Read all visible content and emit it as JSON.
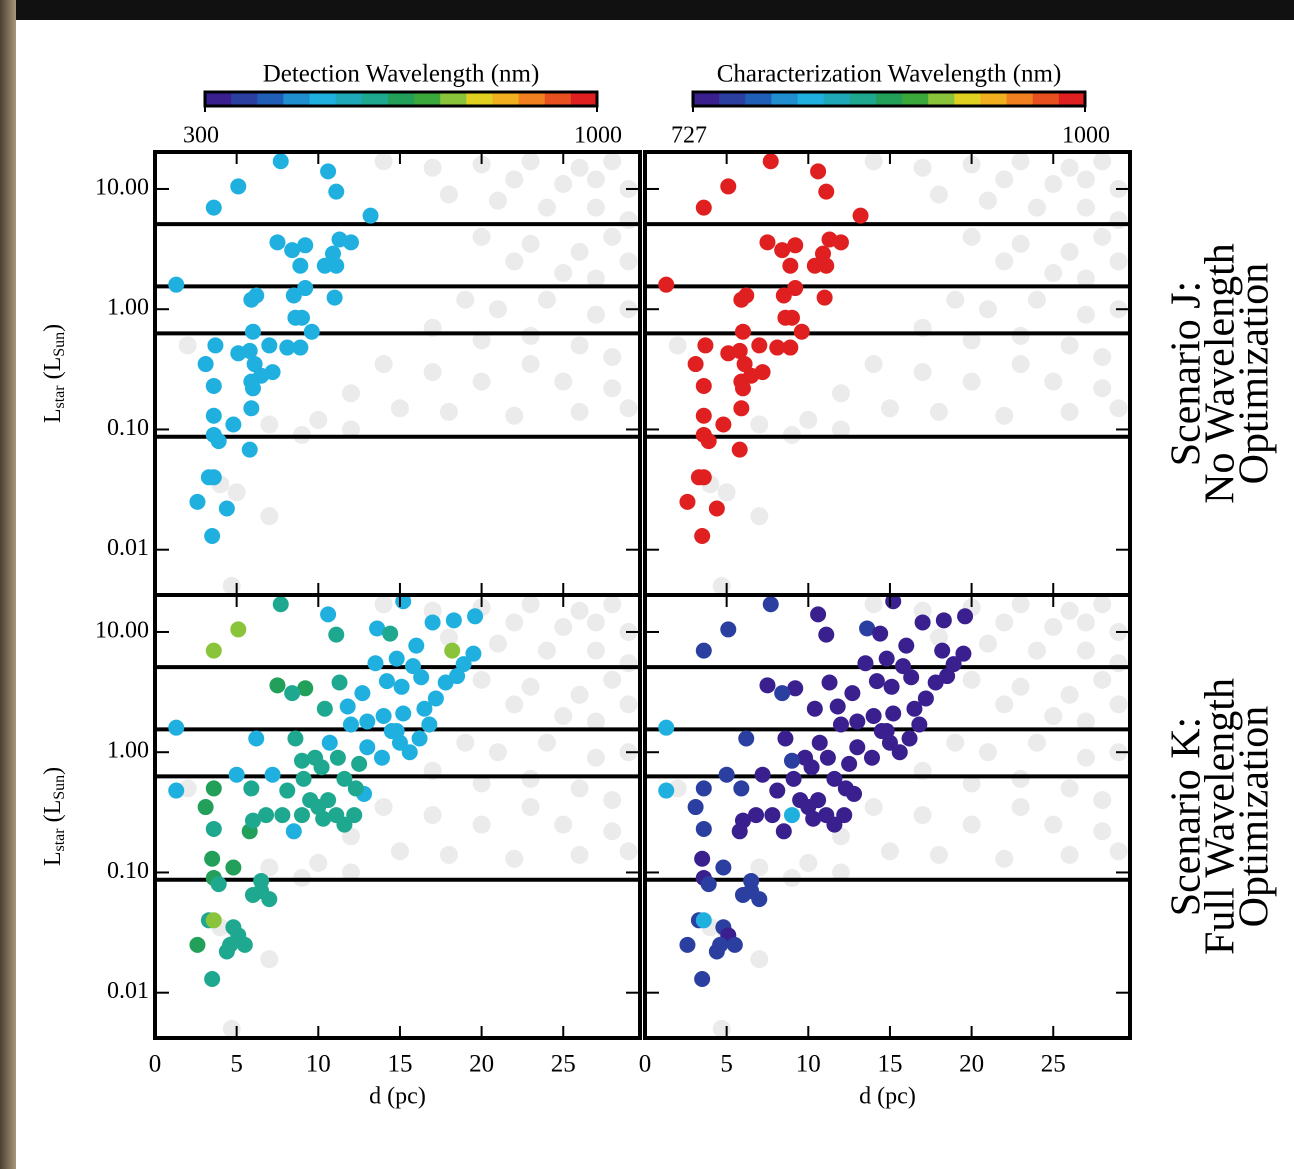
{
  "colorbars": [
    {
      "label": "Detection Wavelength (nm)",
      "lim": [
        300,
        1000
      ],
      "ticks": [
        300,
        1000
      ],
      "colors": [
        "#3a1f8f",
        "#2a3fa0",
        "#1f5fb8",
        "#1f8fd0",
        "#1fb0e0",
        "#1fa9b8",
        "#1fa890",
        "#22a05a",
        "#3aa83a",
        "#8ac43a",
        "#e0d020",
        "#f0b020",
        "#f08020",
        "#e85020",
        "#e02020"
      ]
    },
    {
      "label": "Characterization Wavelength (nm)",
      "lim": [
        727,
        1000
      ],
      "ticks": [
        727,
        1000
      ],
      "colors": [
        "#3a1f8f",
        "#2a3fa0",
        "#1f5fb8",
        "#1f8fd0",
        "#1fb0e0",
        "#1fa9b8",
        "#1fa890",
        "#22a05a",
        "#3aa83a",
        "#8ac43a",
        "#e0d020",
        "#f0b020",
        "#f08020",
        "#e85020",
        "#e02020"
      ]
    }
  ],
  "scenarios": [
    [
      "Scenario J:",
      "No Wavelength",
      "Optimization"
    ],
    [
      "Scenario K:",
      "Full Wavelength",
      "Optimization"
    ]
  ],
  "background_points": {
    "color": "#ebebeb",
    "x": [
      14,
      17,
      20,
      23,
      26,
      28,
      22,
      25,
      27,
      29,
      18,
      21,
      24,
      27,
      29,
      20,
      23,
      26,
      28,
      22,
      25,
      27,
      29,
      19,
      21,
      24,
      27,
      29,
      17,
      20,
      23,
      26,
      28,
      14,
      17,
      20,
      23,
      25,
      28,
      12,
      15,
      18,
      22,
      10,
      12,
      9,
      7,
      2,
      4,
      5,
      7,
      4.7,
      29,
      26
    ],
    "y": [
      17,
      15,
      16,
      17,
      15,
      17,
      12,
      11,
      12,
      10,
      9,
      8,
      7,
      7,
      5.5,
      4,
      3.5,
      3,
      4,
      2.5,
      2,
      1.8,
      2.5,
      1.2,
      1.0,
      1.2,
      0.9,
      1,
      0.7,
      0.55,
      0.6,
      0.5,
      0.4,
      0.35,
      0.3,
      0.25,
      0.35,
      0.25,
      0.22,
      0.2,
      0.15,
      0.14,
      0.13,
      0.12,
      0.1,
      0.09,
      0.11,
      0.5,
      0.035,
      0.03,
      0.019,
      0.005,
      0.15,
      0.14
    ]
  },
  "chart_data": [
    {
      "type": "scatter",
      "colorbar": 0,
      "log_y": true,
      "xlim": [
        0,
        29.7
      ],
      "ylim": [
        0.0042,
        20.3
      ],
      "xticks": [
        0,
        5,
        10,
        15,
        20,
        25
      ],
      "xtick_labels": false,
      "yticks": [
        {
          "value": 0.01,
          "label": "0.01"
        },
        {
          "value": 0.1,
          "label": "0.10"
        },
        {
          "value": 1,
          "label": "1.00"
        },
        {
          "value": 10,
          "label": "10.00"
        }
      ],
      "ytick_labels": true,
      "y_label": [
        "L",
        "star",
        " (L",
        "Sun",
        ")"
      ],
      "reference_lines": [
        5.1,
        1.55,
        0.63,
        0.087
      ],
      "x": [
        7.7,
        10.6,
        5.1,
        11.1,
        3.6,
        13.2,
        7.5,
        8.4,
        9.2,
        11.3,
        12.0,
        10.9,
        11.1,
        8.9,
        10.4,
        9.2,
        8.5,
        11.0,
        1.3,
        6.2,
        5.9,
        9.0,
        8.6,
        9.6,
        6.0,
        3.7,
        7.0,
        8.9,
        8.1,
        5.1,
        5.8,
        3.1,
        6.1,
        7.2,
        6.5,
        5.9,
        3.6,
        6.0,
        3.6,
        5.9,
        3.6,
        4.8,
        3.9,
        5.8,
        3.3,
        3.6,
        2.6,
        4.4,
        3.5
      ],
      "y": [
        17,
        14,
        10.5,
        9.5,
        7,
        6,
        3.6,
        3.1,
        3.4,
        3.8,
        3.6,
        2.9,
        2.3,
        2.3,
        2.3,
        1.5,
        1.3,
        1.25,
        1.6,
        1.3,
        1.2,
        0.85,
        0.85,
        0.65,
        0.65,
        0.5,
        0.5,
        0.48,
        0.48,
        0.43,
        0.45,
        0.35,
        0.35,
        0.3,
        0.28,
        0.25,
        0.23,
        0.22,
        0.13,
        0.15,
        0.09,
        0.11,
        0.08,
        0.068,
        0.04,
        0.04,
        0.025,
        0.022,
        0.013
      ],
      "wavelength": [
        524,
        524,
        524,
        524,
        524,
        524,
        524,
        524,
        524,
        524,
        524,
        524,
        524,
        524,
        524,
        524,
        524,
        524,
        524,
        524,
        524,
        524,
        524,
        524,
        524,
        524,
        524,
        524,
        524,
        524,
        524,
        524,
        524,
        524,
        524,
        524,
        524,
        524,
        524,
        524,
        524,
        524,
        524,
        524,
        524,
        524,
        524,
        524,
        524
      ]
    },
    {
      "type": "scatter",
      "colorbar": 1,
      "log_y": true,
      "xlim": [
        0,
        29.7
      ],
      "ylim": [
        0.0042,
        20.3
      ],
      "xticks": [
        0,
        5,
        10,
        15,
        20,
        25
      ],
      "xtick_labels": false,
      "yticks": [
        0.01,
        0.1,
        1,
        10
      ],
      "ytick_labels": false,
      "reference_lines": [
        5.1,
        1.55,
        0.63,
        0.087
      ],
      "scenario": 0,
      "x": [
        7.7,
        10.6,
        5.1,
        11.1,
        3.6,
        13.2,
        7.5,
        8.4,
        9.2,
        11.3,
        12.0,
        10.9,
        11.1,
        8.9,
        10.4,
        9.2,
        8.5,
        11.0,
        1.3,
        6.2,
        5.9,
        9.0,
        8.6,
        9.6,
        6.0,
        3.7,
        7.0,
        8.9,
        8.1,
        5.1,
        5.8,
        3.1,
        6.1,
        7.2,
        6.5,
        5.9,
        3.6,
        6.0,
        3.6,
        5.9,
        3.6,
        4.8,
        3.9,
        5.8,
        3.3,
        3.6,
        2.6,
        4.4,
        3.5
      ],
      "y": [
        17,
        14,
        10.5,
        9.5,
        7,
        6,
        3.6,
        3.1,
        3.4,
        3.8,
        3.6,
        2.9,
        2.3,
        2.3,
        2.3,
        1.5,
        1.3,
        1.25,
        1.6,
        1.3,
        1.2,
        0.85,
        0.85,
        0.65,
        0.65,
        0.5,
        0.5,
        0.48,
        0.48,
        0.43,
        0.45,
        0.35,
        0.35,
        0.3,
        0.28,
        0.25,
        0.23,
        0.22,
        0.13,
        0.15,
        0.09,
        0.11,
        0.08,
        0.068,
        0.04,
        0.04,
        0.025,
        0.022,
        0.013
      ],
      "wavelength": [
        1000,
        1000,
        1000,
        1000,
        1000,
        1000,
        1000,
        1000,
        1000,
        1000,
        1000,
        1000,
        1000,
        1000,
        1000,
        1000,
        1000,
        1000,
        1000,
        1000,
        1000,
        1000,
        1000,
        1000,
        1000,
        1000,
        1000,
        1000,
        1000,
        1000,
        1000,
        1000,
        1000,
        1000,
        1000,
        1000,
        1000,
        1000,
        1000,
        1000,
        1000,
        1000,
        1000,
        1000,
        1000,
        1000,
        1000,
        1000,
        1000
      ]
    },
    {
      "type": "scatter",
      "colorbar": 0,
      "log_y": true,
      "xlim": [
        0,
        29.7
      ],
      "ylim": [
        0.0042,
        20.3
      ],
      "xticks": [
        0,
        5,
        10,
        15,
        20,
        25
      ],
      "xtick_labels": true,
      "x_label": "d (pc)",
      "yticks": [
        {
          "value": 0.01,
          "label": "0.01"
        },
        {
          "value": 0.1,
          "label": "0.10"
        },
        {
          "value": 1,
          "label": "1.00"
        },
        {
          "value": 10,
          "label": "10.00"
        }
      ],
      "ytick_labels": true,
      "y_label": [
        "L",
        "star",
        " (L",
        "Sun",
        ")"
      ],
      "reference_lines": [
        5.1,
        1.55,
        0.63,
        0.087
      ],
      "x": [
        7.7,
        10.6,
        5.1,
        11.1,
        3.6,
        1.3,
        1.3,
        3.1,
        3.6,
        3.6,
        3.5,
        3.6,
        4.8,
        3.9,
        3.3,
        3.6,
        2.6,
        4.4,
        3.5,
        4.8,
        5.1,
        5.5,
        4.6,
        6.0,
        6.5,
        7.0,
        6.5,
        5.8,
        6.0,
        5.0,
        5.9,
        7.2,
        6.8,
        7.8,
        8.1,
        8.5,
        9.0,
        9.5,
        10.0,
        10.3,
        10.6,
        11.1,
        11.6,
        12.2,
        12.8,
        9.1,
        10.2,
        11.6,
        12.3,
        9.8,
        11.2,
        12.5,
        13.0,
        13.9,
        14.5,
        15.0,
        15.6,
        16.2,
        14.0,
        15.2,
        16.5,
        17.2,
        17.8,
        18.5,
        18.9,
        19.5,
        16.3,
        15.1,
        14.2,
        13.5,
        12.7,
        11.8,
        10.4,
        9.2,
        7.5,
        8.4,
        11.3,
        14.8,
        16.0,
        13.6,
        14.4,
        15.2,
        17.0,
        18.3,
        19.6,
        18.2,
        15.8,
        14.8,
        16.8,
        13.0,
        12.0,
        10.7,
        8.6,
        6.2,
        9.0
      ],
      "y": [
        17,
        14,
        10.5,
        9.5,
        7,
        1.6,
        0.48,
        0.35,
        0.5,
        0.23,
        0.13,
        0.09,
        0.11,
        0.08,
        0.04,
        0.04,
        0.025,
        0.022,
        0.013,
        0.035,
        0.03,
        0.025,
        0.025,
        0.065,
        0.07,
        0.06,
        0.085,
        0.22,
        0.27,
        0.65,
        0.5,
        0.65,
        0.3,
        0.3,
        0.48,
        0.22,
        0.3,
        0.4,
        0.35,
        0.28,
        0.4,
        0.3,
        0.25,
        0.3,
        0.45,
        0.6,
        0.75,
        0.6,
        0.5,
        0.9,
        0.9,
        0.8,
        1.1,
        0.9,
        1.5,
        1.2,
        1.0,
        1.3,
        2.0,
        2.1,
        2.3,
        2.8,
        3.8,
        4.3,
        5.4,
        6.6,
        4.2,
        3.5,
        3.9,
        5.5,
        3.1,
        2.4,
        2.3,
        3.4,
        3.6,
        3.1,
        3.8,
        6.0,
        7.7,
        10.7,
        9.7,
        18,
        12,
        12.5,
        13.5,
        7,
        5.2,
        1.5,
        1.7,
        1.8,
        1.7,
        1.2,
        1.3,
        1.3,
        0.85
      ],
      "wavelength": [
        615,
        524,
        720,
        615,
        720,
        524,
        524,
        650,
        650,
        615,
        650,
        650,
        650,
        615,
        615,
        720,
        650,
        615,
        615,
        615,
        615,
        615,
        615,
        615,
        615,
        615,
        615,
        650,
        615,
        524,
        615,
        524,
        615,
        615,
        615,
        524,
        615,
        615,
        615,
        615,
        615,
        615,
        615,
        615,
        524,
        615,
        615,
        615,
        615,
        615,
        615,
        615,
        524,
        524,
        524,
        524,
        524,
        524,
        524,
        524,
        524,
        524,
        524,
        524,
        524,
        524,
        524,
        524,
        524,
        524,
        524,
        524,
        615,
        650,
        650,
        615,
        615,
        524,
        524,
        524,
        615,
        524,
        524,
        524,
        524,
        720,
        524,
        524,
        524,
        524,
        524,
        524,
        615,
        524,
        615
      ]
    },
    {
      "type": "scatter",
      "colorbar": 1,
      "log_y": true,
      "xlim": [
        0,
        29.7
      ],
      "ylim": [
        0.0042,
        20.3
      ],
      "xticks": [
        0,
        5,
        10,
        15,
        20,
        25
      ],
      "xtick_labels": true,
      "x_label": "d (pc)",
      "yticks": [
        0.01,
        0.1,
        1,
        10
      ],
      "ytick_labels": false,
      "reference_lines": [
        5.1,
        1.55,
        0.63,
        0.087
      ],
      "scenario": 1,
      "x": [
        7.7,
        10.6,
        5.1,
        11.1,
        3.6,
        1.3,
        1.3,
        3.1,
        3.6,
        3.6,
        3.5,
        3.6,
        4.8,
        3.9,
        3.3,
        3.6,
        2.6,
        4.4,
        3.5,
        4.8,
        5.1,
        5.5,
        4.6,
        6.0,
        6.5,
        7.0,
        6.5,
        5.8,
        6.0,
        5.0,
        5.9,
        7.2,
        6.8,
        7.8,
        8.1,
        8.5,
        9.0,
        9.5,
        10.0,
        10.3,
        10.6,
        11.1,
        11.6,
        12.2,
        12.8,
        9.1,
        10.2,
        11.6,
        12.3,
        9.8,
        11.2,
        12.5,
        13.0,
        13.9,
        14.5,
        15.0,
        15.6,
        16.2,
        14.0,
        15.2,
        16.5,
        17.2,
        17.8,
        18.5,
        18.9,
        19.5,
        16.3,
        15.1,
        14.2,
        13.5,
        12.7,
        11.8,
        10.4,
        9.2,
        7.5,
        8.4,
        11.3,
        14.8,
        16.0,
        13.6,
        14.4,
        15.2,
        17.0,
        18.3,
        19.6,
        18.2,
        15.8,
        14.8,
        16.8,
        13.0,
        12.0,
        10.7,
        8.6,
        6.2,
        9.0
      ],
      "y": [
        17,
        14,
        10.5,
        9.5,
        7,
        1.6,
        0.48,
        0.35,
        0.5,
        0.23,
        0.13,
        0.09,
        0.11,
        0.08,
        0.04,
        0.04,
        0.025,
        0.022,
        0.013,
        0.035,
        0.03,
        0.025,
        0.025,
        0.065,
        0.07,
        0.06,
        0.085,
        0.22,
        0.27,
        0.65,
        0.5,
        0.65,
        0.3,
        0.3,
        0.48,
        0.22,
        0.3,
        0.4,
        0.35,
        0.28,
        0.4,
        0.3,
        0.25,
        0.3,
        0.45,
        0.6,
        0.75,
        0.6,
        0.5,
        0.9,
        0.9,
        0.8,
        1.1,
        0.9,
        1.5,
        1.2,
        1.0,
        1.3,
        2.0,
        2.1,
        2.3,
        2.8,
        3.8,
        4.3,
        5.4,
        6.6,
        4.2,
        3.5,
        3.9,
        5.5,
        3.1,
        2.4,
        2.3,
        3.4,
        3.6,
        3.1,
        3.8,
        6.0,
        7.7,
        10.7,
        9.7,
        18,
        12,
        12.5,
        13.5,
        7,
        5.2,
        1.5,
        1.7,
        1.8,
        1.7,
        1.2,
        1.3,
        1.3,
        0.85
      ],
      "wavelength": [
        760,
        740,
        760,
        740,
        760,
        800,
        800,
        760,
        760,
        760,
        740,
        740,
        760,
        760,
        760,
        800,
        760,
        760,
        760,
        760,
        740,
        760,
        760,
        760,
        760,
        760,
        760,
        740,
        740,
        760,
        760,
        740,
        740,
        740,
        740,
        740,
        800,
        740,
        740,
        740,
        740,
        740,
        740,
        740,
        740,
        740,
        740,
        740,
        740,
        740,
        740,
        740,
        740,
        740,
        740,
        740,
        740,
        740,
        740,
        740,
        740,
        740,
        740,
        740,
        740,
        740,
        740,
        740,
        740,
        740,
        740,
        740,
        740,
        740,
        740,
        760,
        740,
        740,
        740,
        760,
        740,
        740,
        740,
        740,
        740,
        740,
        740,
        740,
        740,
        740,
        740,
        740,
        740,
        760,
        760
      ]
    }
  ]
}
